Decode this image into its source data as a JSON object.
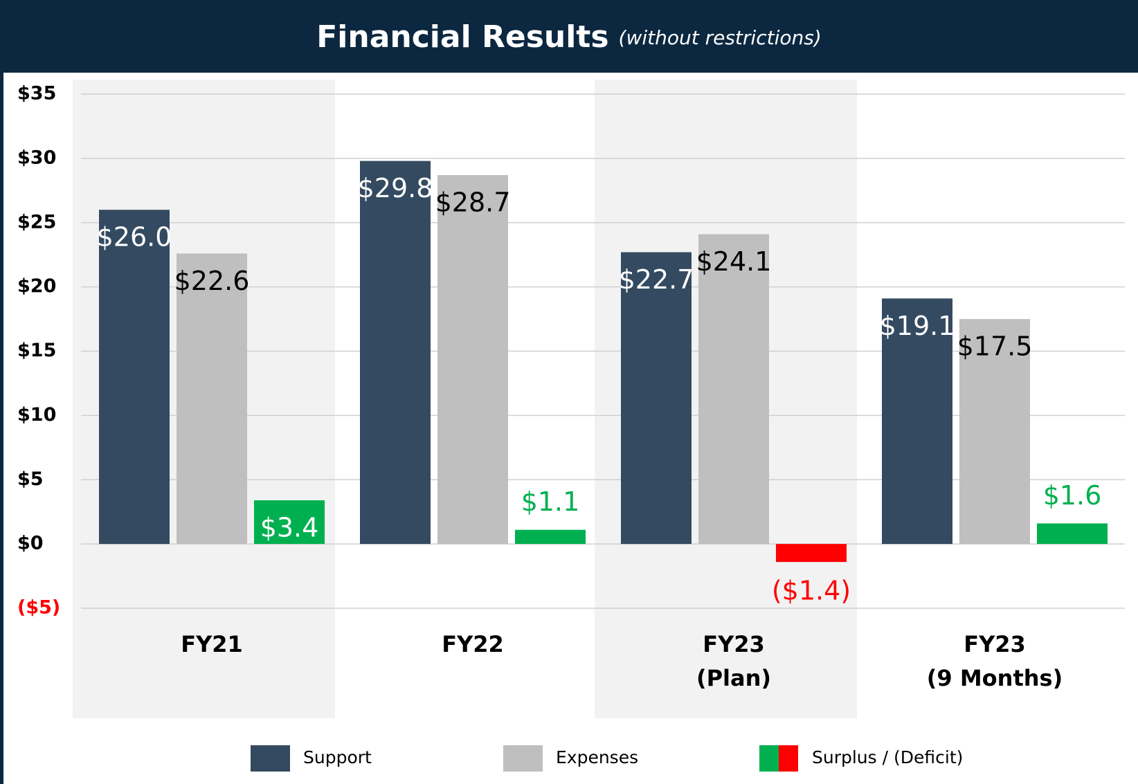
{
  "chart_data": {
    "type": "bar",
    "title": "Financial Results",
    "subtitle": "(without restrictions)",
    "categories": [
      "FY21",
      "FY22",
      "FY23\n(Plan)",
      "FY23\n(9 Months)"
    ],
    "series": [
      {
        "name": "Support",
        "color": "#344a60",
        "label_color": "#ffffff",
        "values": [
          26.0,
          29.8,
          22.7,
          19.1
        ],
        "value_labels": [
          "$26.0",
          "$29.8",
          "$22.7",
          "$19.1"
        ]
      },
      {
        "name": "Expenses",
        "color": "#bfbfbf",
        "label_color": "#000000",
        "values": [
          22.6,
          28.7,
          24.1,
          17.5
        ],
        "value_labels": [
          "$22.6",
          "$28.7",
          "$24.1",
          "$17.5"
        ]
      },
      {
        "name": "Surplus / (Deficit)",
        "color": "#00b050",
        "negative_color": "#ff0000",
        "label_color": "#ffffff",
        "values": [
          3.4,
          1.1,
          -1.4,
          1.6
        ],
        "value_labels": [
          "$3.4",
          "$1.1",
          "($1.4)",
          "$1.6"
        ]
      }
    ],
    "ylim": [
      -5,
      35
    ],
    "yticks": [
      {
        "value": -5,
        "label": "($5)"
      },
      {
        "value": 0,
        "label": "$0"
      },
      {
        "value": 5,
        "label": "$5"
      },
      {
        "value": 10,
        "label": "$10"
      },
      {
        "value": 15,
        "label": "$15"
      },
      {
        "value": 20,
        "label": "$20"
      },
      {
        "value": 25,
        "label": "$25"
      },
      {
        "value": 30,
        "label": "$30"
      },
      {
        "value": 35,
        "label": "$35"
      }
    ],
    "negative_tick_color": "#ff0000",
    "grid": true,
    "legend": "bottom"
  }
}
